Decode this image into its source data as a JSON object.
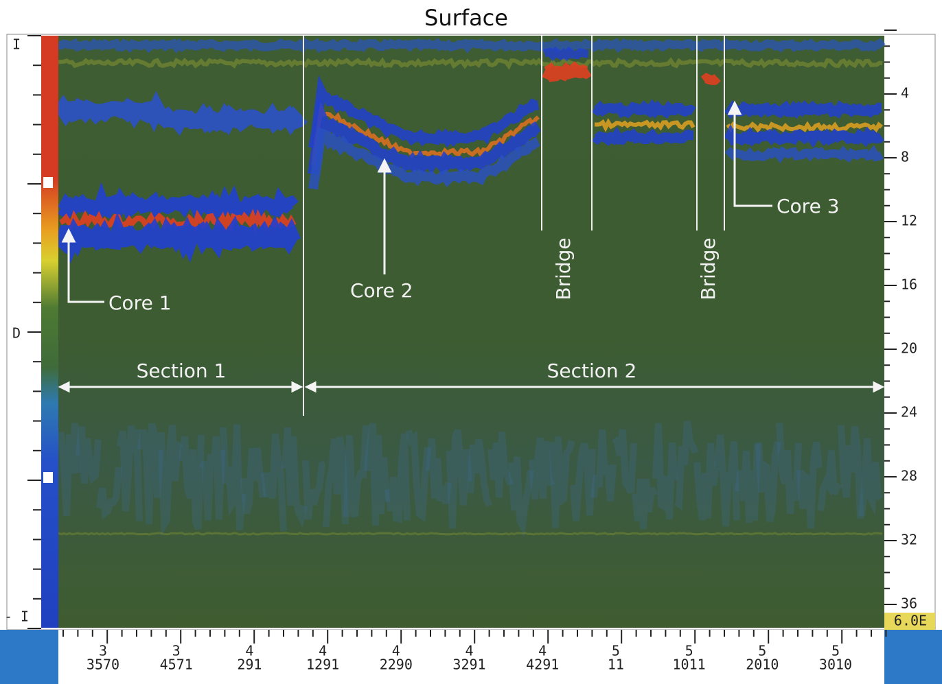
{
  "header": {
    "title": "Surface"
  },
  "left_axis": {
    "labels": [
      "I",
      "D",
      "- I"
    ]
  },
  "right_axis": {
    "labels": [
      "4",
      "8",
      "12",
      "16",
      "20",
      "24",
      "28",
      "32",
      "36"
    ],
    "readout": "6.0E"
  },
  "bottom_axis": {
    "labels": [
      [
        "3",
        "3570"
      ],
      [
        "3",
        "4571"
      ],
      [
        "4",
        "291"
      ],
      [
        "4",
        "1291"
      ],
      [
        "4",
        "2290"
      ],
      [
        "4",
        "3291"
      ],
      [
        "4",
        "4291"
      ],
      [
        "5",
        "11"
      ],
      [
        "5",
        "1011"
      ],
      [
        "5",
        "2010"
      ],
      [
        "5",
        "3010"
      ]
    ]
  },
  "annotations": {
    "cores": [
      "Core 1",
      "Core 2",
      "Core 3"
    ],
    "bridges": [
      "Bridge",
      "Bridge"
    ],
    "sections": [
      "Section 1",
      "Section 2"
    ]
  }
}
